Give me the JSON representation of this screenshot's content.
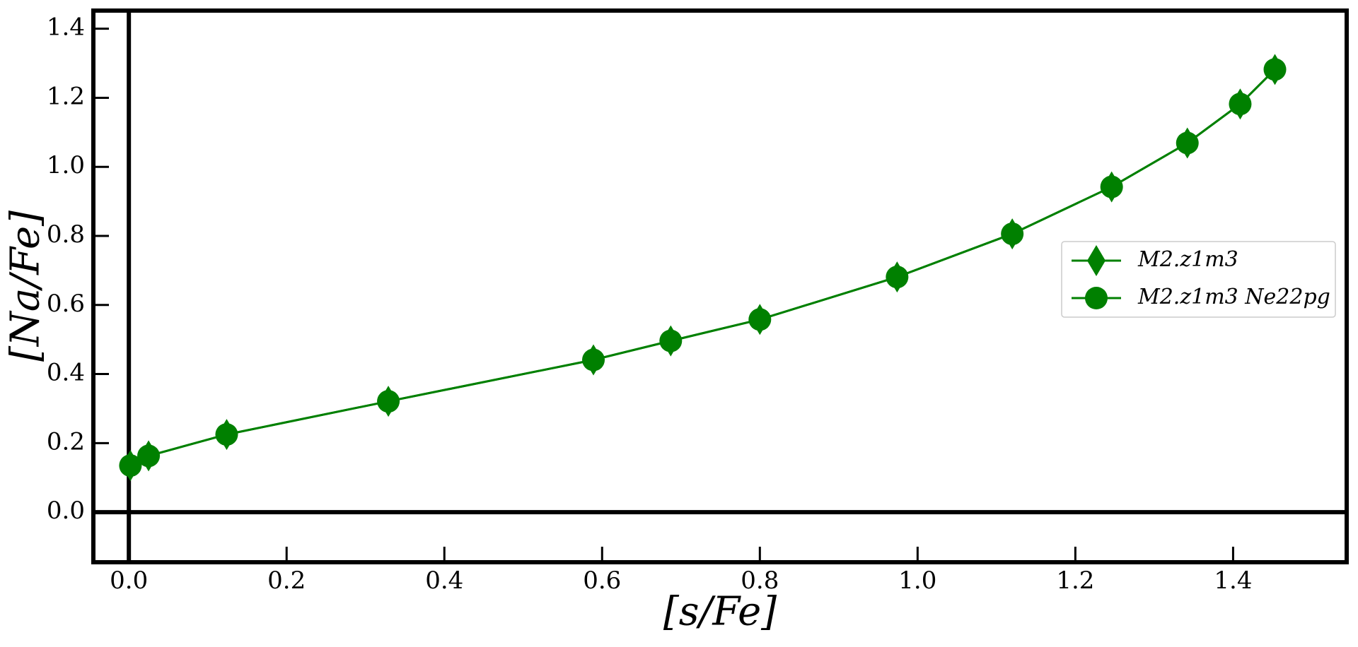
{
  "chart_data": {
    "type": "line",
    "x_label": "[s/Fe]",
    "y_label": "[Na/Fe]",
    "x": [
      0.002,
      0.025,
      0.124,
      0.329,
      0.589,
      0.687,
      0.8,
      0.974,
      1.12,
      1.246,
      1.342,
      1.409,
      1.453
    ],
    "series": [
      {
        "name": "M2.z1m3",
        "color": "#008000",
        "marker": "diamond",
        "values": [
          0.135,
          0.163,
          0.225,
          0.321,
          0.441,
          0.496,
          0.558,
          0.681,
          0.806,
          0.942,
          1.069,
          1.182,
          1.282
        ]
      },
      {
        "name": "M2.z1m3 Ne22pg",
        "color": "#008000",
        "marker": "circle",
        "values": [
          0.135,
          0.163,
          0.225,
          0.321,
          0.441,
          0.496,
          0.558,
          0.681,
          0.806,
          0.942,
          1.069,
          1.182,
          1.282
        ]
      }
    ],
    "xlim": [
      -0.045,
      1.544
    ],
    "ylim": [
      -0.145,
      1.4525
    ],
    "xticks": [
      {
        "value": 0,
        "label": "0.0"
      },
      0.2,
      0.4,
      0.6,
      0.8,
      {
        "value": 1,
        "label": "1.0"
      },
      1.2,
      1.4
    ],
    "yticks": [
      {
        "value": 0,
        "label": "0.0"
      },
      0.2,
      0.4,
      0.6,
      0.8,
      {
        "value": 1,
        "label": "1.0"
      },
      1.2,
      1.4
    ],
    "legend": "center right",
    "grid": false
  }
}
